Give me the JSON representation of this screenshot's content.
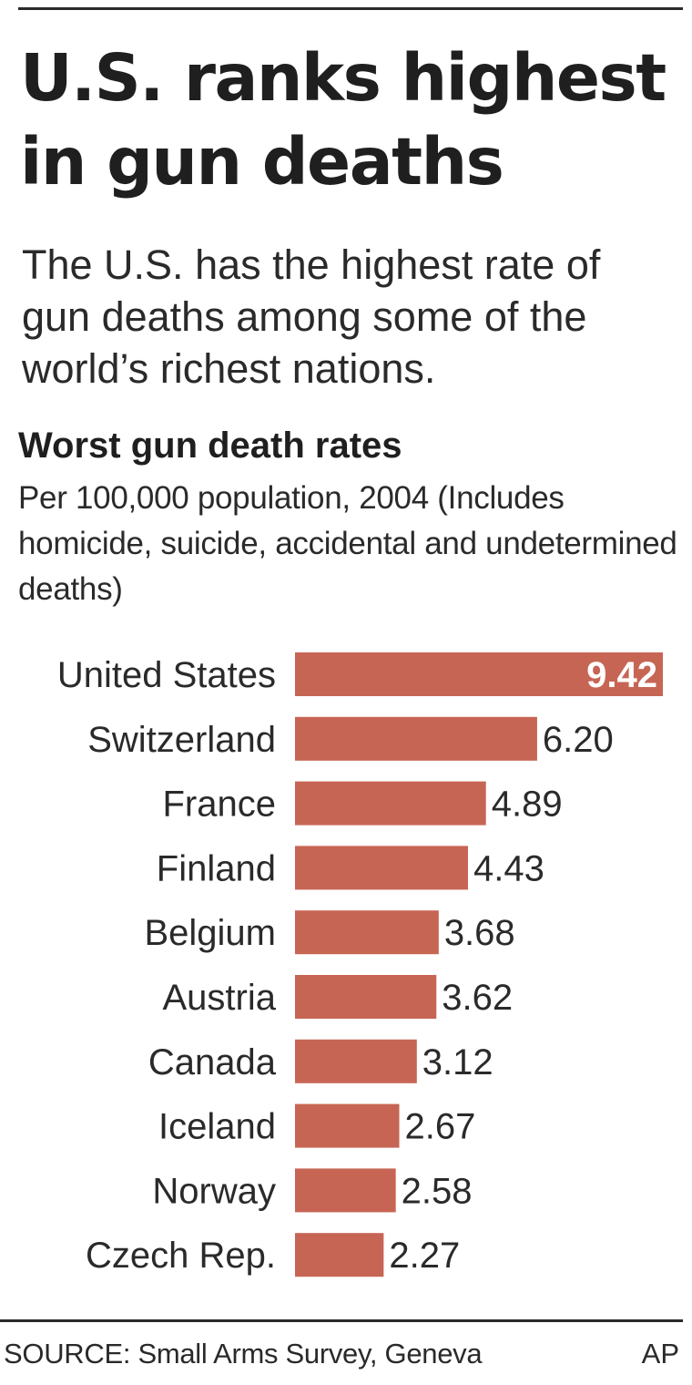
{
  "headline": "U.S. ranks highest in gun deaths",
  "deck": "The U.S. has the highest rate of gun deaths among some of the world’s richest nations.",
  "source": "SOURCE: Small Arms Survey, Geneva",
  "credit": "AP",
  "colors": {
    "bar": "#c76554",
    "text": "#2a2a2a",
    "highlight_label": "#ffffff"
  },
  "chart_data": {
    "type": "bar",
    "orientation": "horizontal",
    "title": "Worst gun death rates",
    "subtitle": "Per 100,000 population, 2004 (Includes homicide, suicide, accidental and undetermined deaths)",
    "categories": [
      "United States",
      "Switzerland",
      "France",
      "Finland",
      "Belgium",
      "Austria",
      "Canada",
      "Iceland",
      "Norway",
      "Czech Rep."
    ],
    "values": [
      9.42,
      6.2,
      4.89,
      4.43,
      3.68,
      3.62,
      3.12,
      2.67,
      2.58,
      2.27
    ],
    "value_labels": [
      "9.42",
      "6.20",
      "4.89",
      "4.43",
      "3.68",
      "3.62",
      "3.12",
      "2.67",
      "2.58",
      "2.27"
    ],
    "xlim": [
      0,
      9.42
    ],
    "grid": false,
    "legend": "none"
  }
}
